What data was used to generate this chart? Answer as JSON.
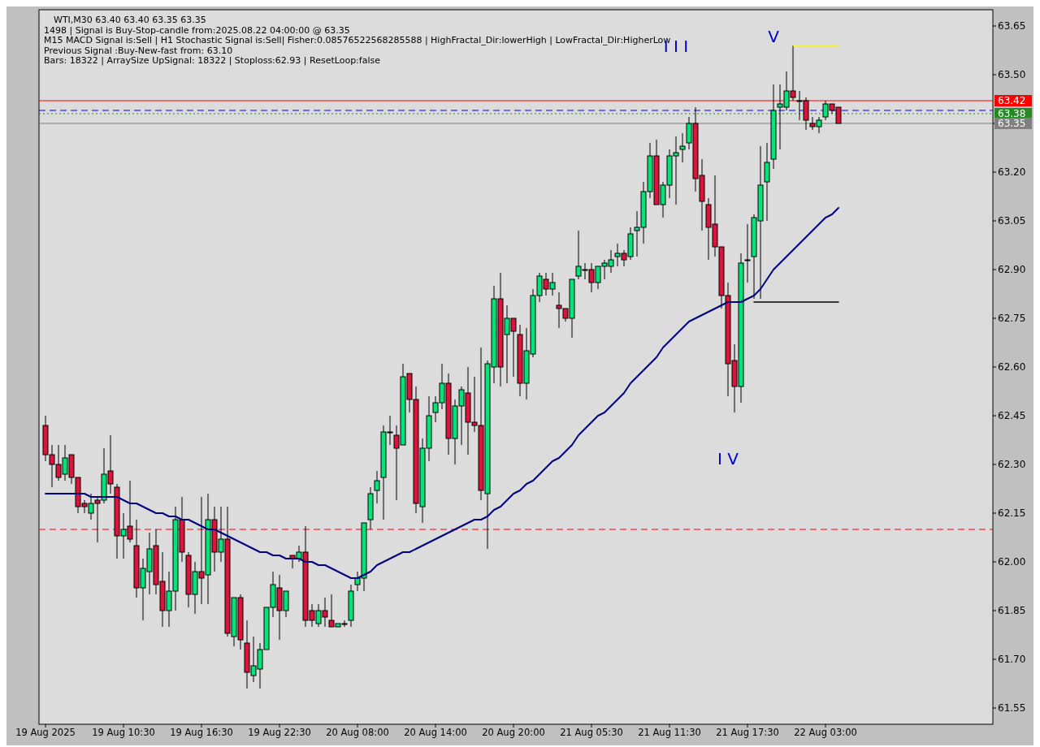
{
  "chart_data": {
    "type": "candlestick",
    "categories": [
      "19 Aug 2025",
      null,
      null,
      null,
      null,
      null,
      null,
      null,
      null,
      null,
      null,
      null,
      "19 Aug 10:30",
      null,
      null,
      null,
      null,
      null,
      null,
      null,
      null,
      null,
      null,
      null,
      "19 Aug 16:30",
      null,
      null,
      null,
      null,
      null,
      null,
      null,
      null,
      null,
      null,
      null,
      "19 Aug 22:30",
      null,
      null,
      null,
      null,
      null,
      null,
      null,
      null,
      null,
      null,
      null,
      "20 Aug 08:00",
      null,
      null,
      null,
      null,
      null,
      null,
      null,
      null,
      null,
      null,
      null,
      "20 Aug 14:00",
      null,
      null,
      null,
      null,
      null,
      null,
      null,
      null,
      null,
      null,
      null,
      "20 Aug 20:00",
      null,
      null,
      null,
      null,
      null,
      null,
      null,
      null,
      null,
      null,
      null,
      "21 Aug 05:30",
      null,
      null,
      null,
      null,
      null,
      null,
      null,
      null,
      null,
      null,
      null,
      "21 Aug 11:30",
      null,
      null,
      null,
      null,
      null,
      null,
      null,
      null,
      null,
      null,
      null,
      "21 Aug 17:30",
      null,
      null,
      null,
      null,
      null,
      null,
      null,
      null,
      null,
      null,
      null,
      "22 Aug 03:00",
      null,
      null
    ],
    "ohlc": [
      [
        62.42,
        62.45,
        62.31,
        62.33
      ],
      [
        62.33,
        62.36,
        62.23,
        62.3
      ],
      [
        62.3,
        62.36,
        62.25,
        62.26
      ],
      [
        62.27,
        62.36,
        62.25,
        62.32
      ],
      [
        62.33,
        62.33,
        62.24,
        62.26
      ],
      [
        62.26,
        62.26,
        62.15,
        62.17
      ],
      [
        62.18,
        62.19,
        62.15,
        62.17
      ],
      [
        62.15,
        62.21,
        62.13,
        62.18
      ],
      [
        62.19,
        62.2,
        62.06,
        62.18
      ],
      [
        62.19,
        62.35,
        62.18,
        62.27
      ],
      [
        62.28,
        62.39,
        62.21,
        62.24
      ],
      [
        62.23,
        62.24,
        62.01,
        62.08
      ],
      [
        62.08,
        62.15,
        62.01,
        62.1
      ],
      [
        62.11,
        62.25,
        62.06,
        62.07
      ],
      [
        62.05,
        62.13,
        61.89,
        61.92
      ],
      [
        61.92,
        62.01,
        61.82,
        61.98
      ],
      [
        61.97,
        62.09,
        61.9,
        62.04
      ],
      [
        62.05,
        62.1,
        61.9,
        61.93
      ],
      [
        61.94,
        62.03,
        61.8,
        61.85
      ],
      [
        61.85,
        61.97,
        61.8,
        61.91
      ],
      [
        61.91,
        62.17,
        61.85,
        62.13
      ],
      [
        62.13,
        62.2,
        62.0,
        62.03
      ],
      [
        62.02,
        62.03,
        61.86,
        61.9
      ],
      [
        61.9,
        62.0,
        61.84,
        61.97
      ],
      [
        61.97,
        62.2,
        61.87,
        61.95
      ],
      [
        61.96,
        62.21,
        61.87,
        62.13
      ],
      [
        62.13,
        62.17,
        61.97,
        62.03
      ],
      [
        62.03,
        62.17,
        62.0,
        62.07
      ],
      [
        62.07,
        62.17,
        61.77,
        61.78
      ],
      [
        61.77,
        61.89,
        61.74,
        61.89
      ],
      [
        61.89,
        61.9,
        61.73,
        61.76
      ],
      [
        61.75,
        61.82,
        61.61,
        61.66
      ],
      [
        61.65,
        61.77,
        61.63,
        61.68
      ],
      [
        61.67,
        61.75,
        61.61,
        61.73
      ],
      [
        61.73,
        61.86,
        61.73,
        61.86
      ],
      [
        61.86,
        61.97,
        61.83,
        61.93
      ],
      [
        61.92,
        61.96,
        61.76,
        61.85
      ],
      [
        61.85,
        61.91,
        61.83,
        61.91
      ],
      [
        62.02,
        62.02,
        61.98,
        62.01
      ],
      [
        62.01,
        62.05,
        62.0,
        62.03
      ],
      [
        62.03,
        62.11,
        61.8,
        61.82
      ],
      [
        61.85,
        61.87,
        61.8,
        61.82
      ],
      [
        61.81,
        61.87,
        61.8,
        61.85
      ],
      [
        61.85,
        61.89,
        61.8,
        61.83
      ],
      [
        61.82,
        61.9,
        61.8,
        61.8
      ],
      [
        61.8,
        61.81,
        61.8,
        61.81
      ],
      [
        61.81,
        61.82,
        61.8,
        61.81
      ],
      [
        61.82,
        61.93,
        61.8,
        61.91
      ],
      [
        61.93,
        61.97,
        61.91,
        61.95
      ],
      [
        61.95,
        62.12,
        61.91,
        62.12
      ],
      [
        62.13,
        62.23,
        62.1,
        62.21
      ],
      [
        62.22,
        62.28,
        62.18,
        62.25
      ],
      [
        62.26,
        62.42,
        62.13,
        62.4
      ],
      [
        62.4,
        62.45,
        62.36,
        62.4
      ],
      [
        62.39,
        62.42,
        62.19,
        62.35
      ],
      [
        62.36,
        62.61,
        62.36,
        62.57
      ],
      [
        62.58,
        62.58,
        62.46,
        62.5
      ],
      [
        62.5,
        62.54,
        62.15,
        62.18
      ],
      [
        62.17,
        62.38,
        62.12,
        62.35
      ],
      [
        62.35,
        62.51,
        62.31,
        62.45
      ],
      [
        62.46,
        62.51,
        62.43,
        62.49
      ],
      [
        62.49,
        62.61,
        62.47,
        62.55
      ],
      [
        62.55,
        62.58,
        62.33,
        62.38
      ],
      [
        62.38,
        62.5,
        62.3,
        62.48
      ],
      [
        62.48,
        62.54,
        62.36,
        62.53
      ],
      [
        62.52,
        62.6,
        62.33,
        62.43
      ],
      [
        62.43,
        62.57,
        62.4,
        62.42
      ],
      [
        62.42,
        62.66,
        62.19,
        62.22
      ],
      [
        62.21,
        62.62,
        62.04,
        62.61
      ],
      [
        62.6,
        62.85,
        62.55,
        62.81
      ],
      [
        62.81,
        62.89,
        62.54,
        62.6
      ],
      [
        62.7,
        62.79,
        62.55,
        62.75
      ],
      [
        62.75,
        62.75,
        62.57,
        62.71
      ],
      [
        62.7,
        62.73,
        62.51,
        62.55
      ],
      [
        62.55,
        62.72,
        62.5,
        62.65
      ],
      [
        62.64,
        62.84,
        62.63,
        62.82
      ],
      [
        62.82,
        62.89,
        62.8,
        62.88
      ],
      [
        62.87,
        62.89,
        62.82,
        62.84
      ],
      [
        62.84,
        62.89,
        62.82,
        62.86
      ],
      [
        62.79,
        62.83,
        62.72,
        62.78
      ],
      [
        62.78,
        62.78,
        62.74,
        62.75
      ],
      [
        62.75,
        62.87,
        62.69,
        62.87
      ],
      [
        62.88,
        63.02,
        62.87,
        62.91
      ],
      [
        62.9,
        62.92,
        62.87,
        62.9
      ],
      [
        62.9,
        62.92,
        62.83,
        62.86
      ],
      [
        62.86,
        62.91,
        62.84,
        62.91
      ],
      [
        62.91,
        62.93,
        62.87,
        62.92
      ],
      [
        62.91,
        62.96,
        62.89,
        62.93
      ],
      [
        62.94,
        62.98,
        62.91,
        62.95
      ],
      [
        62.95,
        62.96,
        62.91,
        62.93
      ],
      [
        62.94,
        63.03,
        62.93,
        63.01
      ],
      [
        63.02,
        63.08,
        62.94,
        63.03
      ],
      [
        63.03,
        63.17,
        62.98,
        63.14
      ],
      [
        63.14,
        63.29,
        63.12,
        63.25
      ],
      [
        63.25,
        63.3,
        63.1,
        63.1
      ],
      [
        63.1,
        63.17,
        63.06,
        63.16
      ],
      [
        63.16,
        63.27,
        63.12,
        63.25
      ],
      [
        63.25,
        63.31,
        63.1,
        63.26
      ],
      [
        63.27,
        63.32,
        63.23,
        63.28
      ],
      [
        63.29,
        63.37,
        63.27,
        63.35
      ],
      [
        63.35,
        63.4,
        63.14,
        63.18
      ],
      [
        63.19,
        63.24,
        63.02,
        63.11
      ],
      [
        63.1,
        63.12,
        62.93,
        63.03
      ],
      [
        63.04,
        63.19,
        62.94,
        62.97
      ],
      [
        62.97,
        62.97,
        62.78,
        62.82
      ],
      [
        62.82,
        62.86,
        62.51,
        62.61
      ],
      [
        62.62,
        62.67,
        62.46,
        62.54
      ],
      [
        62.54,
        62.95,
        62.49,
        62.92
      ],
      [
        62.93,
        63.04,
        62.86,
        62.93
      ],
      [
        62.94,
        63.07,
        62.81,
        63.06
      ],
      [
        63.05,
        63.28,
        62.81,
        63.16
      ],
      [
        63.17,
        63.29,
        63.05,
        63.23
      ],
      [
        63.24,
        63.47,
        63.21,
        63.39
      ],
      [
        63.4,
        63.47,
        63.27,
        63.41
      ],
      [
        63.4,
        63.51,
        63.39,
        63.45
      ],
      [
        63.45,
        63.59,
        63.42,
        63.43
      ],
      [
        63.42,
        63.45,
        63.36,
        63.42
      ],
      [
        63.42,
        63.43,
        63.33,
        63.36
      ],
      [
        63.35,
        63.37,
        63.33,
        63.34
      ],
      [
        63.34,
        63.37,
        63.32,
        63.36
      ],
      [
        63.37,
        63.42,
        63.36,
        63.41
      ],
      [
        63.41,
        63.41,
        63.38,
        63.39
      ],
      [
        63.4,
        63.4,
        63.35,
        63.35
      ]
    ],
    "colors": [
      "#dc143c",
      "#dc143c",
      "#dc143c",
      "#00e67a",
      "#dc143c",
      "#dc143c",
      "#dc143c",
      "#00e67a",
      "#dc143c",
      "#00e67a",
      "#dc143c",
      "#dc143c",
      "#00e67a",
      "#dc143c",
      "#dc143c",
      "#00e67a",
      "#00e67a",
      "#dc143c",
      "#dc143c",
      "#00e67a",
      "#00e67a",
      "#dc143c",
      "#dc143c",
      "#00e67a",
      "#dc143c",
      "#00e67a",
      "#dc143c",
      "#00e67a",
      "#dc143c",
      "#00e67a",
      "#dc143c",
      "#dc143c",
      "#00e67a",
      "#00e67a",
      "#00e67a",
      "#00e67a",
      "#dc143c",
      "#00e67a",
      "#dc143c",
      "#00e67a",
      "#dc143c",
      "#dc143c",
      "#00e67a",
      "#dc143c",
      "#dc143c",
      "#00e67a",
      "#00e67a",
      "#00e67a",
      "#00e67a",
      "#00e67a",
      "#00e67a",
      "#00e67a",
      "#00e67a",
      "#00e67a",
      "#dc143c",
      "#00e67a",
      "#dc143c",
      "#dc143c",
      "#00e67a",
      "#00e67a",
      "#00e67a",
      "#00e67a",
      "#dc143c",
      "#00e67a",
      "#00e67a",
      "#dc143c",
      "#dc143c",
      "#dc143c",
      "#00e67a",
      "#00e67a",
      "#dc143c",
      "#00e67a",
      "#dc143c",
      "#dc143c",
      "#00e67a",
      "#00e67a",
      "#00e67a",
      "#dc143c",
      "#00e67a",
      "#dc143c",
      "#dc143c",
      "#00e67a",
      "#00e67a",
      "#00e67a",
      "#dc143c",
      "#00e67a",
      "#00e67a",
      "#00e67a",
      "#00e67a",
      "#dc143c",
      "#00e67a",
      "#00e67a",
      "#00e67a",
      "#00e67a",
      "#dc143c",
      "#00e67a",
      "#00e67a",
      "#00e67a",
      "#00e67a",
      "#00e67a",
      "#dc143c",
      "#dc143c",
      "#dc143c",
      "#dc143c",
      "#dc143c",
      "#dc143c",
      "#dc143c",
      "#00e67a",
      "#00e67a",
      "#00e67a",
      "#00e67a",
      "#00e67a",
      "#00e67a",
      "#00e67a",
      "#00e67a",
      "#dc143c",
      "#00e67a",
      "#dc143c",
      "#dc143c",
      "#00e67a",
      "#00e67a",
      "#dc143c",
      "#dc143c"
    ],
    "series": [
      {
        "type": "line",
        "color": "#000080",
        "values": [
          62.21,
          62.21,
          62.21,
          62.21,
          62.21,
          62.21,
          62.21,
          62.2,
          62.2,
          62.2,
          62.2,
          62.2,
          62.19,
          62.18,
          62.18,
          62.17,
          62.16,
          62.15,
          62.15,
          62.14,
          62.14,
          62.13,
          62.13,
          62.12,
          62.11,
          62.1,
          62.1,
          62.09,
          62.08,
          62.07,
          62.06,
          62.05,
          62.04,
          62.03,
          62.03,
          62.02,
          62.02,
          62.01,
          62.01,
          62.01,
          62.0,
          62.0,
          61.99,
          61.99,
          61.98,
          61.97,
          61.96,
          61.95,
          61.95,
          61.96,
          61.97,
          61.99,
          62.0,
          62.01,
          62.02,
          62.03,
          62.03,
          62.04,
          62.05,
          62.06,
          62.07,
          62.08,
          62.09,
          62.1,
          62.11,
          62.12,
          62.13,
          62.13,
          62.14,
          62.16,
          62.17,
          62.19,
          62.21,
          62.22,
          62.24,
          62.25,
          62.27,
          62.29,
          62.31,
          62.32,
          62.34,
          62.36,
          62.39,
          62.41,
          62.43,
          62.45,
          62.46,
          62.48,
          62.5,
          62.52,
          62.55,
          62.57,
          62.59,
          62.61,
          62.63,
          62.66,
          62.68,
          62.7,
          62.72,
          62.74,
          62.75,
          62.76,
          62.77,
          62.78,
          62.79,
          62.8,
          62.8,
          62.8,
          62.81,
          62.82,
          62.84,
          62.87,
          62.9,
          62.92,
          62.94,
          62.96,
          62.98,
          63.0,
          63.02,
          63.04,
          63.06,
          63.07,
          63.09
        ]
      },
      {
        "type": "line",
        "color": "#ffff00",
        "values": [
          null,
          null,
          null,
          null,
          null,
          null,
          null,
          null,
          null,
          null,
          null,
          null,
          null,
          null,
          null,
          null,
          null,
          null,
          null,
          null,
          null,
          null,
          null,
          null,
          null,
          null,
          null,
          null,
          null,
          null,
          null,
          null,
          null,
          null,
          null,
          null,
          null,
          null,
          null,
          null,
          null,
          null,
          null,
          null,
          null,
          null,
          null,
          null,
          null,
          null,
          null,
          null,
          null,
          null,
          null,
          null,
          null,
          null,
          null,
          null,
          null,
          null,
          null,
          null,
          null,
          null,
          null,
          null,
          null,
          null,
          null,
          null,
          null,
          null,
          null,
          null,
          null,
          null,
          null,
          null,
          null,
          null,
          null,
          null,
          null,
          null,
          null,
          null,
          null,
          null,
          null,
          null,
          null,
          null,
          null,
          null,
          null,
          null,
          null,
          null,
          null,
          null,
          null,
          null,
          null,
          null,
          null,
          null,
          null,
          null,
          null,
          null,
          null,
          null,
          null,
          63.59,
          63.59,
          63.59,
          63.59,
          63.59,
          63.59,
          63.59,
          63.59
        ]
      },
      {
        "type": "line",
        "color": "#000000",
        "values": [
          null,
          null,
          null,
          null,
          null,
          null,
          null,
          null,
          null,
          null,
          null,
          null,
          null,
          null,
          null,
          null,
          null,
          null,
          null,
          null,
          null,
          null,
          null,
          null,
          null,
          null,
          null,
          null,
          null,
          null,
          null,
          null,
          null,
          null,
          null,
          null,
          null,
          null,
          null,
          null,
          null,
          null,
          null,
          null,
          null,
          null,
          null,
          null,
          null,
          null,
          null,
          null,
          null,
          null,
          null,
          null,
          null,
          null,
          null,
          null,
          null,
          null,
          null,
          null,
          null,
          null,
          null,
          null,
          null,
          null,
          null,
          null,
          null,
          null,
          null,
          null,
          null,
          null,
          null,
          null,
          null,
          null,
          null,
          null,
          null,
          null,
          null,
          null,
          null,
          null,
          null,
          null,
          null,
          null,
          null,
          null,
          null,
          null,
          null,
          null,
          null,
          null,
          null,
          null,
          null,
          null,
          null,
          null,
          null,
          62.8,
          62.8,
          62.8,
          62.8,
          62.8,
          62.8,
          62.8,
          62.8,
          62.8,
          62.8,
          62.8,
          62.8,
          62.8,
          62.8
        ]
      }
    ],
    "ylim": [
      61.5,
      63.7
    ],
    "yticks": [
      61.55,
      {
        "value": 61.7,
        "label": "61.70"
      },
      61.85,
      {
        "value": 62,
        "label": "62.00"
      },
      62.15,
      {
        "value": 62.3,
        "label": "62.30"
      },
      62.45,
      {
        "value": 62.6,
        "label": "62.60"
      },
      62.75,
      {
        "value": 62.9,
        "label": "62.90"
      },
      63.05,
      {
        "value": 63.2,
        "label": "63.20"
      },
      63.35,
      {
        "value": 63.5,
        "label": "63.50"
      },
      63.65
    ],
    "ref_lines": [
      {
        "axis": "y",
        "value": 63.42,
        "label": "63.42",
        "color": "#ff0000",
        "line_style": "solid"
      },
      {
        "axis": "y",
        "value": 63.39,
        "color": "#0000ff",
        "line_style": "dashed"
      },
      {
        "axis": "y",
        "value": 63.38,
        "label": "63.38",
        "color": "#228b22",
        "line_style": "dotted"
      },
      {
        "axis": "y",
        "value": 63.35,
        "label": "63.35",
        "color": "#808080",
        "line_style": "solid"
      },
      {
        "axis": "y",
        "value": 62.1,
        "color": "#ff0000",
        "line_style": "dashed"
      }
    ],
    "annotations": [
      "WTI,M30  63.40 63.40 63.35 63.35",
      "1498 | Signal is Buy-Stop-candle from:2025.08.22 04:00:00 @ 63.35",
      "M15 MACD Signal is:Sell | H1 Stochastic Signal is:Sell| Fisher:0.08576522568285588 | HighFractal_Dir:lowerHigh | LowFractal_Dir:HigherLow",
      "Previous Signal :Buy-New-fast from: 63.10",
      "Bars: 18322 | ArraySize UpSignal: 18322 | Stoploss:62.93 | ResetLoop:false",
      "I I I",
      "V",
      "I V"
    ]
  }
}
